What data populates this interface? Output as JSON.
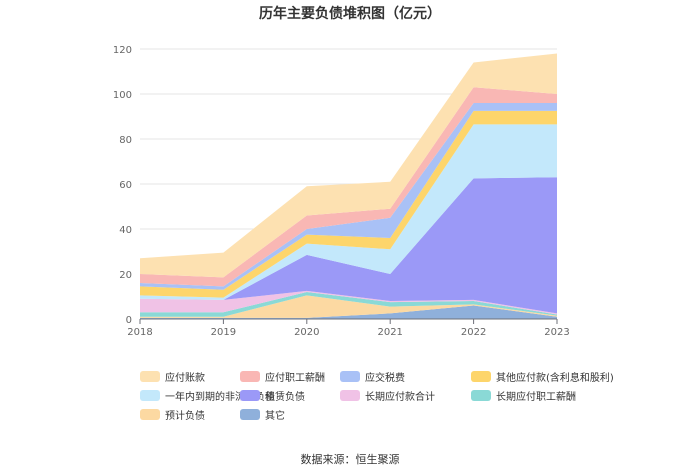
{
  "chart_data": {
    "type": "area",
    "stacked": true,
    "title": "历年主要负债堆积图（亿元）",
    "x": [
      "2018",
      "2019",
      "2020",
      "2021",
      "2022",
      "2023"
    ],
    "ylim": [
      0,
      120
    ],
    "yticks": [
      0,
      20,
      40,
      60,
      80,
      100,
      120
    ],
    "grid": true,
    "legend_position": "bottom",
    "series": [
      {
        "name": "其它",
        "color": "#8fb0db",
        "values": [
          0.5,
          0.5,
          0.5,
          2.5,
          6.0,
          1.0
        ]
      },
      {
        "name": "预计负债",
        "color": "#fcd9a2",
        "values": [
          0.5,
          0.5,
          10.0,
          3.0,
          0.5,
          0.5
        ]
      },
      {
        "name": "长期应付职工薪酬",
        "color": "#8ad9d6",
        "values": [
          2.0,
          2.0,
          1.5,
          2.0,
          1.5,
          0.5
        ]
      },
      {
        "name": "长期应付款合计",
        "color": "#f0c2e6",
        "values": [
          6.0,
          5.5,
          0.5,
          0.5,
          0.5,
          0.5
        ]
      },
      {
        "name": "租赁负债",
        "color": "#9b99f7",
        "values": [
          0.0,
          0.0,
          16.0,
          12.0,
          54.0,
          60.5
        ]
      },
      {
        "name": "一年内到期的非流动负债",
        "color": "#c3e8fb",
        "values": [
          1.5,
          1.0,
          5.0,
          11.0,
          24.0,
          23.5
        ]
      },
      {
        "name": "其他应付款(含利息和股利)",
        "color": "#fdd56b",
        "values": [
          4.0,
          3.5,
          4.0,
          5.0,
          6.0,
          6.0
        ]
      },
      {
        "name": "应交税费",
        "color": "#a9c1f6",
        "values": [
          1.5,
          1.5,
          2.5,
          9.0,
          3.5,
          3.5
        ]
      },
      {
        "name": "应付职工薪酬",
        "color": "#f9b7b4",
        "values": [
          4.0,
          4.0,
          6.0,
          4.0,
          7.0,
          4.0
        ]
      },
      {
        "name": "应付账款",
        "color": "#fde1b1",
        "values": [
          7.0,
          11.0,
          13.0,
          12.0,
          11.0,
          18.0
        ]
      }
    ]
  },
  "legend": {
    "items": [
      {
        "label": "应付账款",
        "color": "#fde1b1"
      },
      {
        "label": "应付职工薪酬",
        "color": "#f9b7b4"
      },
      {
        "label": "应交税费",
        "color": "#a9c1f6"
      },
      {
        "label": "其他应付款(含利息和股利)",
        "color": "#fdd56b"
      },
      {
        "label": "一年内到期的非流动负债",
        "color": "#c3e8fb"
      },
      {
        "label": "租赁负债",
        "color": "#9b99f7"
      },
      {
        "label": "长期应付款合计",
        "color": "#f0c2e6"
      },
      {
        "label": "长期应付职工薪酬",
        "color": "#8ad9d6"
      },
      {
        "label": "预计负债",
        "color": "#fcd9a2"
      },
      {
        "label": "其它",
        "color": "#8fb0db"
      }
    ]
  },
  "source": "数据来源：恒生聚源"
}
